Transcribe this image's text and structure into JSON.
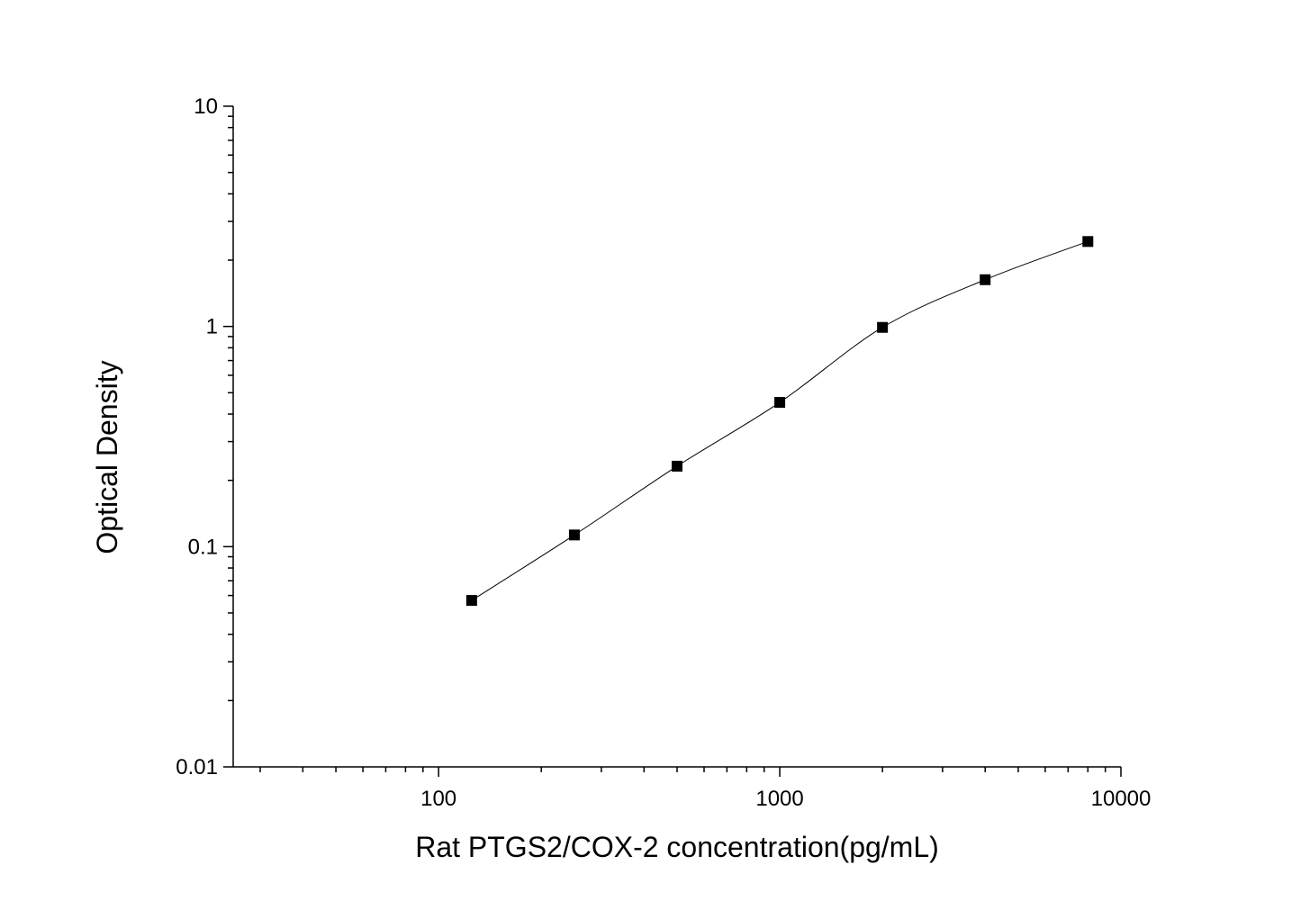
{
  "chart_data": {
    "type": "scatter",
    "title": "",
    "xlabel": "Rat PTGS2/COX-2 concentration(pg/mL)",
    "ylabel": "Optical Density",
    "x_scale": "log",
    "y_scale": "log",
    "xlim": [
      25,
      10000
    ],
    "ylim": [
      0.01,
      10
    ],
    "x_ticks": [
      {
        "value": 100,
        "label": "100"
      },
      {
        "value": 1000,
        "label": "1000"
      },
      {
        "value": 10000,
        "label": "10000"
      }
    ],
    "y_ticks": [
      {
        "value": 0.01,
        "label": "0.01"
      },
      {
        "value": 0.1,
        "label": "0.1"
      },
      {
        "value": 1,
        "label": "1"
      },
      {
        "value": 10,
        "label": "10"
      }
    ],
    "grid": false,
    "legend": "none",
    "series": [
      {
        "marker": "square",
        "color": "#000000",
        "fit_line": true,
        "points": [
          {
            "x": 125,
            "y": 0.057
          },
          {
            "x": 250,
            "y": 0.113
          },
          {
            "x": 500,
            "y": 0.232
          },
          {
            "x": 1000,
            "y": 0.452
          },
          {
            "x": 2000,
            "y": 0.99
          },
          {
            "x": 4000,
            "y": 1.63
          },
          {
            "x": 8000,
            "y": 2.43
          }
        ]
      }
    ]
  }
}
